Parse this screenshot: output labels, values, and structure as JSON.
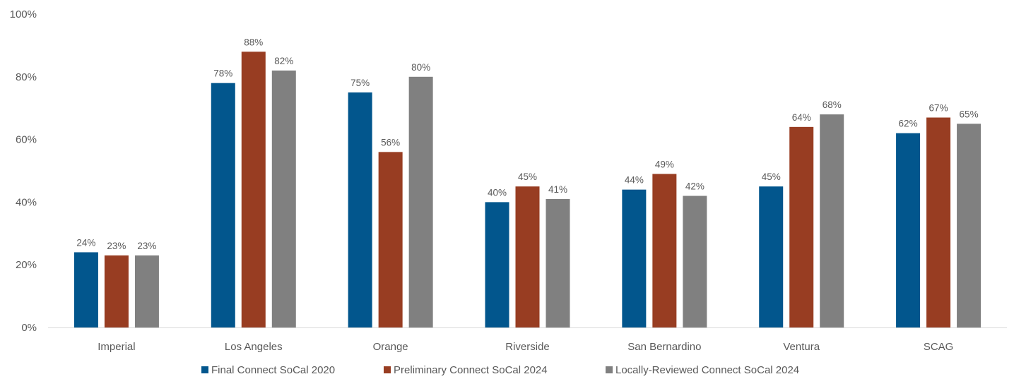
{
  "chart_data": {
    "type": "bar",
    "categories": [
      "Imperial",
      "Los Angeles",
      "Orange",
      "Riverside",
      "San Bernardino",
      "Ventura",
      "SCAG"
    ],
    "series": [
      {
        "name": "Final Connect SoCal 2020",
        "color": "#02568d",
        "values": [
          24,
          78,
          75,
          40,
          44,
          45,
          62
        ],
        "labels": [
          "24%",
          "78%",
          "75%",
          "40%",
          "44%",
          "45%",
          "62%"
        ]
      },
      {
        "name": "Preliminary Connect SoCal 2024",
        "color": "#983d22",
        "values": [
          23,
          88,
          56,
          45,
          49,
          64,
          67
        ],
        "labels": [
          "23%",
          "88%",
          "56%",
          "45%",
          "49%",
          "64%",
          "67%"
        ]
      },
      {
        "name": "Locally-Reviewed Connect SoCal 2024",
        "color": "#808080",
        "values": [
          23,
          82,
          80,
          41,
          42,
          68,
          65
        ],
        "labels": [
          "23%",
          "82%",
          "80%",
          "41%",
          "42%",
          "68%",
          "65%"
        ]
      }
    ],
    "yticks": [
      "0%",
      "20%",
      "40%",
      "60%",
      "80%",
      "100%"
    ],
    "ylim": [
      0,
      100
    ],
    "grid": false,
    "legend_position": "bottom"
  }
}
